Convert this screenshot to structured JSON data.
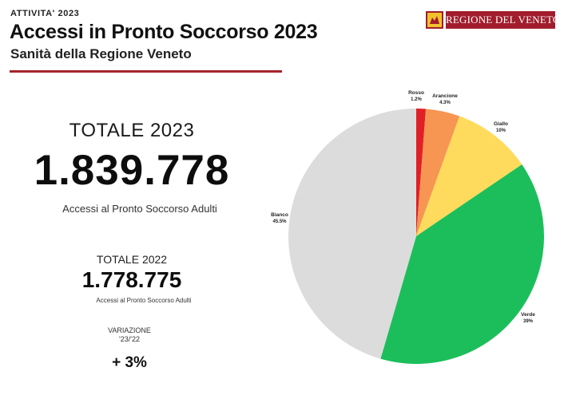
{
  "header": {
    "kicker": "ATTIVITA' 2023",
    "title": "Accessi in Pronto Soccorso 2023",
    "subtitle": "Sanità della Regione Veneto",
    "rule_color": "#a5232c"
  },
  "logo": {
    "text": "REGIONE DEL VENETO",
    "color": "#a11c2c"
  },
  "totals": {
    "total_2023_label": "TOTALE 2023",
    "total_2023_value": "1.839.778",
    "total_2023_desc": "Accessi al Pronto Soccorso Adulti",
    "total_2022_label": "TOTALE 2022",
    "total_2022_value": "1.778.775",
    "total_2022_desc": "Accessi al Pronto Soccorso Adulti",
    "variation_label": "VARIAZIONE",
    "variation_period": "'23/'22",
    "variation_value": "+ 3%"
  },
  "chart_data": {
    "type": "pie",
    "title": "",
    "categories": [
      "Rosso",
      "Arancione",
      "Giallo",
      "Verde",
      "Bianco"
    ],
    "values": [
      1.2,
      4.3,
      10,
      39,
      45.5
    ],
    "value_labels": [
      "1.2%",
      "4.3%",
      "10%",
      "39%",
      "45.5%"
    ],
    "colors": [
      "#e02027",
      "#f79552",
      "#fedb5c",
      "#1cbe5b",
      "#dcdcdc"
    ],
    "start_angle_deg": 0,
    "direction": "clockwise"
  }
}
